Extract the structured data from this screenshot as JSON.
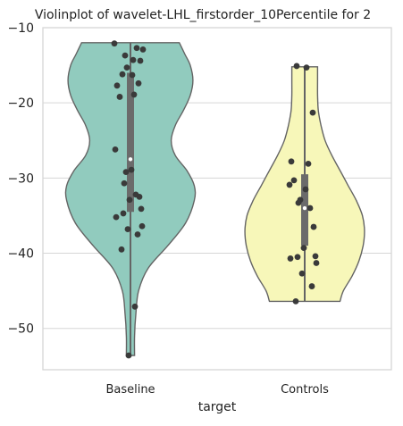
{
  "chart_data": {
    "type": "violin",
    "title": "Violinplot of wavelet-LHL_firstorder_10Percentile for 2",
    "xlabel": "target",
    "ylabel": "",
    "ylim": [
      -55.5,
      -10
    ],
    "yticks": [
      -10,
      -20,
      -30,
      -40,
      -50
    ],
    "ytick_labels": [
      "−10",
      "−20",
      "−30",
      "−40",
      "−50"
    ],
    "grid": "horizontal",
    "categories": [
      "Baseline",
      "Controls"
    ],
    "colors": {
      "Baseline": "#91cbbe",
      "Controls": "#f7f7b9",
      "outline": "#646464",
      "points": "#3a3a3a",
      "grid": "#d6d6d6"
    },
    "series": [
      {
        "name": "Baseline",
        "min": -53.6,
        "max": -12.0,
        "q1": -34.5,
        "median": -27.5,
        "q3": -16.0,
        "profile": [
          [
            -53.6,
            0.06
          ],
          [
            -51,
            0.06
          ],
          [
            -48,
            0.08
          ],
          [
            -45,
            0.12
          ],
          [
            -42,
            0.26
          ],
          [
            -39,
            0.55
          ],
          [
            -36,
            0.81
          ],
          [
            -33,
            0.94
          ],
          [
            -31,
            0.94
          ],
          [
            -29,
            0.83
          ],
          [
            -27,
            0.66
          ],
          [
            -25,
            0.6
          ],
          [
            -23,
            0.66
          ],
          [
            -21,
            0.78
          ],
          [
            -19,
            0.88
          ],
          [
            -17,
            0.92
          ],
          [
            -15,
            0.88
          ],
          [
            -13.5,
            0.8
          ],
          [
            -12.0,
            0.72
          ]
        ],
        "points": [
          -12.1,
          -12.7,
          -12.9,
          -13.7,
          -14.3,
          -14.4,
          -15.3,
          -16.2,
          -16.3,
          -17.4,
          -17.7,
          -18.9,
          -19.2,
          -26.2,
          -28.9,
          -29.2,
          -30.7,
          -32.2,
          -32.5,
          -32.9,
          -34.1,
          -34.7,
          -35.2,
          -36.4,
          -36.8,
          -37.5,
          -39.5,
          -47.1,
          -53.6
        ]
      },
      {
        "name": "Controls",
        "min": -46.4,
        "max": -15.2,
        "q1": -39.0,
        "median": -34.0,
        "q3": -29.5,
        "profile": [
          [
            -46.4,
            0.52
          ],
          [
            -45,
            0.57
          ],
          [
            -43,
            0.7
          ],
          [
            -41,
            0.8
          ],
          [
            -39,
            0.86
          ],
          [
            -37,
            0.88
          ],
          [
            -35,
            0.85
          ],
          [
            -33,
            0.76
          ],
          [
            -31,
            0.64
          ],
          [
            -29,
            0.52
          ],
          [
            -27,
            0.4
          ],
          [
            -25,
            0.3
          ],
          [
            -23,
            0.24
          ],
          [
            -21,
            0.2
          ],
          [
            -19,
            0.19
          ],
          [
            -17,
            0.19
          ],
          [
            -15.2,
            0.19
          ]
        ],
        "points": [
          -15.1,
          -15.3,
          -21.3,
          -27.8,
          -28.1,
          -30.3,
          -30.9,
          -31.5,
          -32.9,
          -33.3,
          -34.0,
          -36.5,
          -39.3,
          -40.4,
          -40.5,
          -40.7,
          -41.3,
          -42.7,
          -44.4,
          -46.4
        ]
      }
    ]
  }
}
